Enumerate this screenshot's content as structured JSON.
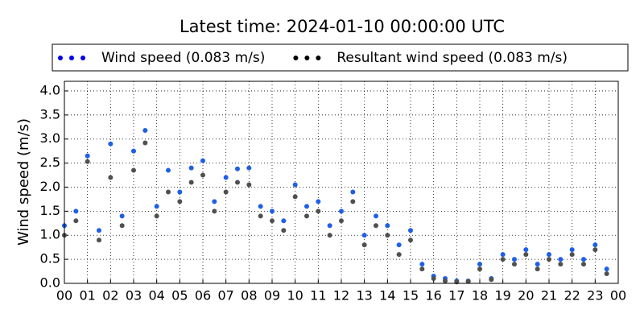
{
  "chart_data": {
    "type": "scatter",
    "title": "Latest time: 2024-01-10 00:00:00 UTC",
    "ylabel": "Wind speed (m/s)",
    "xlim": [
      0,
      24
    ],
    "ylim": [
      0,
      4.2
    ],
    "xticks": [
      {
        "value": 0,
        "label": "00"
      },
      {
        "value": 1,
        "label": "01"
      },
      {
        "value": 2,
        "label": "02"
      },
      {
        "value": 3,
        "label": "03"
      },
      {
        "value": 4,
        "label": "04"
      },
      {
        "value": 5,
        "label": "05"
      },
      {
        "value": 6,
        "label": "06"
      },
      {
        "value": 7,
        "label": "07"
      },
      {
        "value": 8,
        "label": "08"
      },
      {
        "value": 9,
        "label": "09"
      },
      {
        "value": 10,
        "label": "10"
      },
      {
        "value": 11,
        "label": "11"
      },
      {
        "value": 12,
        "label": "12"
      },
      {
        "value": 13,
        "label": "13"
      },
      {
        "value": 14,
        "label": "14"
      },
      {
        "value": 15,
        "label": "15"
      },
      {
        "value": 16,
        "label": "16"
      },
      {
        "value": 17,
        "label": "17"
      },
      {
        "value": 18,
        "label": "18"
      },
      {
        "value": 19,
        "label": "19"
      },
      {
        "value": 20,
        "label": "20"
      },
      {
        "value": 21,
        "label": "21"
      },
      {
        "value": 22,
        "label": "22"
      },
      {
        "value": 23,
        "label": "23"
      },
      {
        "value": 24,
        "label": "00"
      }
    ],
    "yticks": [
      {
        "value": 0,
        "label": "0.0"
      },
      0.5,
      {
        "value": 1,
        "label": "1.0"
      },
      1.5,
      {
        "value": 2,
        "label": "2.0"
      },
      2.5,
      {
        "value": 3,
        "label": "3.0"
      },
      3.5,
      {
        "value": 4,
        "label": "4.0"
      }
    ],
    "grid": true,
    "x": [
      0,
      0.5,
      1,
      1.5,
      2,
      2.5,
      3,
      3.5,
      4,
      4.5,
      5,
      5.5,
      6,
      6.5,
      7,
      7.5,
      8,
      8.5,
      9,
      9.5,
      10,
      10.5,
      11,
      11.5,
      12,
      12.5,
      13,
      13.5,
      14,
      14.5,
      15,
      15.5,
      16,
      16.5,
      17,
      17.5,
      18,
      18.5,
      19,
      19.5,
      20,
      20.5,
      21,
      21.5,
      22,
      22.5,
      23,
      23.5
    ],
    "series": [
      {
        "name": "Wind speed (0.083 m/s)",
        "color": "#1f5fe8",
        "legend_color": "#0000ee",
        "values": [
          1.2,
          1.5,
          2.65,
          1.1,
          2.9,
          1.4,
          2.75,
          3.18,
          1.6,
          2.35,
          1.9,
          2.4,
          2.55,
          1.7,
          2.2,
          2.38,
          2.4,
          1.6,
          1.5,
          1.3,
          2.05,
          1.6,
          1.7,
          1.2,
          1.5,
          1.9,
          1.0,
          1.4,
          1.2,
          0.8,
          1.1,
          0.4,
          0.15,
          0.1,
          0.05,
          0.05,
          0.4,
          0.1,
          0.6,
          0.5,
          0.7,
          0.4,
          0.6,
          0.5,
          0.7,
          0.5,
          0.8,
          0.3
        ]
      },
      {
        "name": "Resultant wind speed (0.083 m/s)",
        "color": "#505050",
        "legend_color": "#000000",
        "values": [
          1.0,
          1.3,
          2.53,
          0.9,
          2.2,
          1.2,
          2.35,
          2.92,
          1.4,
          1.9,
          1.7,
          2.1,
          2.25,
          1.5,
          1.9,
          2.1,
          2.05,
          1.4,
          1.3,
          1.1,
          1.8,
          1.4,
          1.5,
          1.0,
          1.3,
          1.7,
          0.8,
          1.2,
          1.0,
          0.6,
          0.9,
          0.3,
          0.1,
          0.05,
          0.03,
          0.04,
          0.3,
          0.08,
          0.5,
          0.4,
          0.6,
          0.3,
          0.5,
          0.4,
          0.6,
          0.4,
          0.7,
          0.2
        ]
      }
    ]
  }
}
